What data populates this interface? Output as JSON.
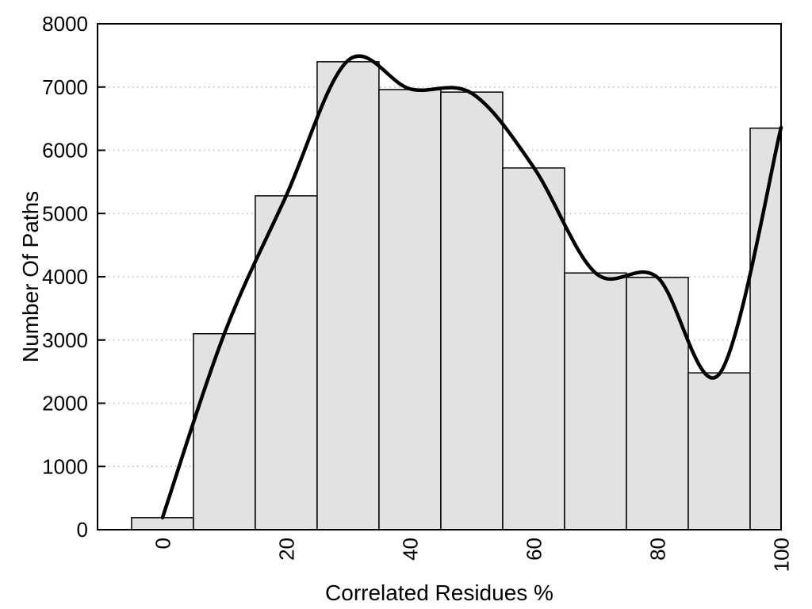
{
  "chart_data": {
    "type": "bar",
    "subtype": "histogram-with-spline",
    "title": "",
    "xlabel": "Correlated Residues %",
    "ylabel": "Number Of Paths",
    "xlim": [
      -10.5,
      100
    ],
    "ylim": [
      0,
      8000
    ],
    "x_ticks": [
      0,
      20,
      40,
      60,
      80,
      100
    ],
    "y_ticks": [
      0,
      1000,
      2000,
      3000,
      4000,
      5000,
      6000,
      7000,
      8000
    ],
    "grid": "horizontal-dotted",
    "legend": "none",
    "bins": [
      {
        "range": [
          -5,
          5
        ],
        "count": 190
      },
      {
        "range": [
          5,
          15
        ],
        "count": 3100
      },
      {
        "range": [
          15,
          25
        ],
        "count": 5280
      },
      {
        "range": [
          25,
          35
        ],
        "count": 7400
      },
      {
        "range": [
          35,
          45
        ],
        "count": 6960
      },
      {
        "range": [
          45,
          55
        ],
        "count": 6920
      },
      {
        "range": [
          55,
          65
        ],
        "count": 5720
      },
      {
        "range": [
          65,
          75
        ],
        "count": 4060
      },
      {
        "range": [
          75,
          85
        ],
        "count": 3990
      },
      {
        "range": [
          85,
          95
        ],
        "count": 2480
      },
      {
        "range": [
          95,
          100
        ],
        "count": 6350
      }
    ],
    "series": [
      {
        "name": "spline-fit-curve",
        "type": "line",
        "points": [
          [
            0,
            190
          ],
          [
            10,
            3100
          ],
          [
            20,
            5280
          ],
          [
            30,
            7420
          ],
          [
            40,
            6970
          ],
          [
            50,
            6900
          ],
          [
            60,
            5730
          ],
          [
            70,
            4060
          ],
          [
            80,
            3990
          ],
          [
            90,
            2460
          ],
          [
            100,
            6360
          ]
        ]
      }
    ],
    "colors": {
      "background": "#ffffff",
      "bar_fill": "#e2e2e2",
      "bar_border": "#000000",
      "curve": "#000000",
      "grid": "#b8b8b8",
      "axis": "#000000",
      "text": "#000000"
    }
  }
}
